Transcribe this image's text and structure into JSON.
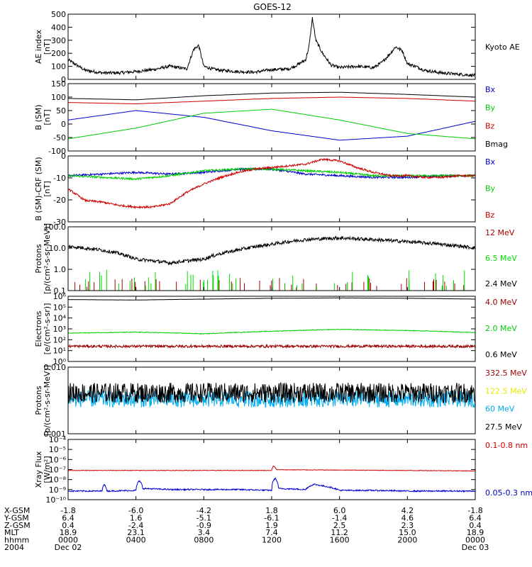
{
  "title": "GOES-12",
  "chart_data": [
    {
      "type": "line",
      "ylabel_lines": [
        "AE index",
        "[nT]"
      ],
      "ylim": [
        0,
        500
      ],
      "yticks": [
        "500",
        "400",
        "300",
        "200",
        "100",
        "0"
      ],
      "yscale": "linear",
      "series": [
        {
          "name": "Kyoto AE",
          "color": "#000000",
          "noise": 12,
          "x": [
            0,
            0.5,
            1,
            1.5,
            2,
            3,
            4,
            5,
            6,
            7,
            7.4,
            7.7,
            8,
            8.5,
            9,
            10,
            11,
            12,
            13,
            13.5,
            14,
            14.2,
            14.4,
            14.6,
            14.8,
            15,
            15.5,
            16,
            17,
            18,
            18.5,
            19,
            19.3,
            19.7,
            20,
            20.5,
            21,
            22,
            23,
            24
          ],
          "y": [
            150,
            110,
            70,
            60,
            50,
            50,
            60,
            75,
            100,
            80,
            230,
            260,
            100,
            80,
            70,
            60,
            55,
            75,
            80,
            110,
            150,
            250,
            470,
            300,
            250,
            200,
            110,
            90,
            100,
            90,
            130,
            200,
            250,
            220,
            120,
            100,
            70,
            50,
            40,
            30
          ]
        }
      ],
      "legend": [
        "Kyoto AE"
      ]
    },
    {
      "type": "line",
      "ylabel_lines": [
        "B (SM)",
        "[nT]"
      ],
      "ylim": [
        -100,
        150
      ],
      "yticks": [
        "150",
        "100",
        "50",
        "0",
        "-50",
        "-100"
      ],
      "yscale": "linear",
      "series": [
        {
          "name": "Bx",
          "color": "#0000cc",
          "noise": 0,
          "x": [
            0,
            4,
            8,
            12,
            16,
            20,
            24
          ],
          "y": [
            15,
            50,
            25,
            -25,
            -60,
            -45,
            10
          ]
        },
        {
          "name": "By",
          "color": "#00cc00",
          "noise": 0,
          "x": [
            0,
            4,
            8,
            12,
            16,
            20,
            24
          ],
          "y": [
            -55,
            -15,
            40,
            55,
            15,
            -35,
            -55
          ]
        },
        {
          "name": "Bz",
          "color": "#cc0000",
          "noise": 0,
          "x": [
            0,
            4,
            8,
            12,
            16,
            20,
            24
          ],
          "y": [
            80,
            75,
            85,
            95,
            100,
            95,
            85
          ]
        },
        {
          "name": "Bmag",
          "color": "#000000",
          "noise": 0,
          "x": [
            0,
            4,
            8,
            12,
            16,
            20,
            24
          ],
          "y": [
            95,
            90,
            105,
            115,
            118,
            110,
            100
          ]
        }
      ],
      "legend": [
        "Bx",
        "By",
        "Bz",
        "Bmag"
      ]
    },
    {
      "type": "line",
      "ylabel_lines": [
        "B (SM)-CRF (SM)",
        "[nT]"
      ],
      "ylim": [
        -30,
        10
      ],
      "yticks": [
        "0",
        "-10",
        "-20",
        "-30"
      ],
      "yscale": "linear",
      "series": [
        {
          "name": "Bx",
          "color": "#0000cc",
          "noise": 0.6,
          "x": [
            0,
            2,
            4,
            6,
            8,
            10,
            12,
            14,
            16,
            18,
            20,
            22,
            24
          ],
          "y": [
            -2,
            -1,
            0,
            -1,
            0,
            2,
            2,
            -1,
            -2,
            -3,
            -3,
            -2,
            -2
          ]
        },
        {
          "name": "By",
          "color": "#00cc00",
          "noise": 0.6,
          "x": [
            0,
            2,
            4,
            6,
            8,
            10,
            12,
            14,
            16,
            18,
            20,
            22,
            24
          ],
          "y": [
            -2,
            -3,
            -4,
            -2,
            1,
            2,
            2,
            1,
            0,
            -2,
            -2,
            -2,
            -2
          ]
        },
        {
          "name": "Bz",
          "color": "#cc0000",
          "noise": 0.6,
          "x": [
            0,
            1,
            2,
            3,
            4,
            5,
            6,
            7,
            8,
            9,
            10,
            11,
            12,
            13,
            14,
            15,
            16,
            17,
            18,
            19,
            20,
            21,
            22,
            23,
            24
          ],
          "y": [
            -10,
            -17,
            -18,
            -20,
            -21,
            -21,
            -19,
            -12,
            -7,
            -3,
            0,
            2,
            3,
            4,
            5,
            8,
            7,
            3,
            0,
            -2,
            -2,
            -3,
            -3,
            -2,
            -2
          ]
        }
      ],
      "legend": [
        "Bx",
        "By",
        "Bz"
      ]
    },
    {
      "type": "line",
      "ylabel_lines": [
        "Protons",
        "[p/(cm²-s-sr-MeV)]"
      ],
      "ylim": [
        0.1,
        100
      ],
      "yticks": [
        "100.0",
        "10.0",
        "1.0",
        "0.1"
      ],
      "yscale": "log",
      "series": [
        {
          "name": "12 MeV",
          "color": "#aa0000",
          "noise": 0,
          "style": "spikes",
          "x": [
            0,
            24
          ],
          "y": [
            0.1,
            0.1
          ]
        },
        {
          "name": "6.5 MeV",
          "color": "#00dd00",
          "noise": 0,
          "style": "spikes",
          "x": [
            0,
            24
          ],
          "y": [
            0.1,
            0.1
          ]
        },
        {
          "name": "2.4 MeV",
          "color": "#000000",
          "noise": 0.08,
          "x": [
            0,
            2,
            4,
            6,
            8,
            10,
            12,
            14,
            16,
            18,
            20,
            22,
            24
          ],
          "y": [
            12,
            8,
            3,
            2,
            3,
            8,
            15,
            25,
            30,
            25,
            20,
            15,
            10
          ]
        }
      ],
      "legend": [
        "12 MeV",
        "6.5 MeV",
        "2.4 MeV"
      ]
    },
    {
      "type": "line",
      "ylabel_lines": [
        "Electrons",
        "[e/(cm²-s-sr)]"
      ],
      "ylim": [
        1,
        1000000
      ],
      "yticks": [
        "10⁶",
        "10⁵",
        "10⁴",
        "10³",
        "10²",
        "10¹",
        "10⁰"
      ],
      "yscale": "log",
      "series": [
        {
          "name": "4.0 MeV",
          "color": "#990000",
          "noise": 0.12,
          "x": [
            0,
            24
          ],
          "y": [
            25,
            25
          ]
        },
        {
          "name": "2.0 MeV",
          "color": "#00cc00",
          "noise": 0.03,
          "x": [
            0,
            4,
            8,
            12,
            16,
            20,
            24
          ],
          "y": [
            400,
            500,
            350,
            600,
            900,
            700,
            450
          ]
        },
        {
          "name": "0.6 MeV",
          "color": "#000000",
          "noise": 0.01,
          "x": [
            0,
            4,
            8,
            12,
            16,
            20,
            24
          ],
          "y": [
            500000,
            450000,
            550000,
            650000,
            700000,
            650000,
            550000
          ]
        }
      ],
      "legend": [
        "4.0 MeV",
        "2.0 MeV",
        "0.6 MeV"
      ]
    },
    {
      "type": "line",
      "ylabel_lines": [
        "Protons",
        "[p/(cm²-s-sr-MeV)]"
      ],
      "ylim": [
        0.001,
        0.1
      ],
      "yticks": [
        "0.010",
        "0.001"
      ],
      "yscale": "log",
      "series": [
        {
          "name": "332.5 MeV",
          "color": "#990000",
          "noise": 0,
          "x": [
            0,
            24
          ],
          "y": [
            0.001,
            0.001
          ]
        },
        {
          "name": "122.5 MeV",
          "color": "#e8e800",
          "noise": 0,
          "x": [
            0,
            24
          ],
          "y": [
            0.001,
            0.001
          ]
        },
        {
          "name": "60 MeV",
          "color": "#00aaee",
          "noise": 0.25,
          "x": [
            0,
            24
          ],
          "y": [
            0.011,
            0.011
          ]
        },
        {
          "name": "27.5 MeV",
          "color": "#000000",
          "noise": 0.3,
          "x": [
            0,
            24
          ],
          "y": [
            0.017,
            0.017
          ]
        }
      ],
      "legend": [
        "332.5 MeV",
        "122.5 MeV",
        "60 MeV",
        "27.5 MeV"
      ]
    },
    {
      "type": "line",
      "ylabel_lines": [
        "Xray Flux",
        "[W/m²]"
      ],
      "ylim": [
        1e-10,
        0.001
      ],
      "yticks": [
        "10⁻⁴",
        "10⁻⁵",
        "10⁻⁶",
        "10⁻⁷",
        "10⁻⁸",
        "10⁻⁹",
        "10⁻¹⁰"
      ],
      "yscale": "log",
      "series": [
        {
          "name": "0.1-0.8 nm",
          "color": "#cc0000",
          "noise": 0.03,
          "x": [
            0,
            12,
            12.1,
            12.3,
            24
          ],
          "y": [
            2.5e-07,
            2.5e-07,
            8e-07,
            3e-07,
            2.2e-07
          ]
        },
        {
          "name": "0.05-0.3 nm",
          "color": "#0000cc",
          "noise": 0.08,
          "x": [
            0,
            2,
            2.1,
            2.3,
            4,
            4.2,
            4.4,
            6,
            10,
            12,
            12.2,
            12.4,
            14,
            14.5,
            15,
            16,
            18,
            20,
            24
          ],
          "y": [
            1e-09,
            1e-09,
            6e-09,
            1e-09,
            1.2e-09,
            1.5e-08,
            2e-09,
            1.5e-09,
            1.5e-09,
            1.2e-09,
            3e-08,
            2e-09,
            1.5e-09,
            6e-09,
            4e-09,
            1.2e-09,
            1.2e-09,
            1e-09,
            1e-09
          ]
        }
      ],
      "legend": [
        "0.1-0.8 nm",
        "0.05-0.3 nm"
      ]
    }
  ],
  "xaxis": {
    "xlim": [
      0,
      24
    ],
    "tick_hours": [
      0,
      4,
      8,
      12,
      16,
      20,
      24
    ],
    "rows": [
      {
        "label": "X-GSM",
        "values": [
          "-1.8",
          "-6.0",
          "-4.2",
          "1.8",
          "6.0",
          "4.2",
          "-1.8"
        ]
      },
      {
        "label": "Y-GSM",
        "values": [
          "6.4",
          "1.6",
          "-5.1",
          "-6.1",
          "-1.4",
          "4.6",
          "6.4"
        ]
      },
      {
        "label": "Z-GSM",
        "values": [
          "0.4",
          "-2.4",
          "-0.9",
          "1.9",
          "2.5",
          "2.3",
          "0.4"
        ]
      },
      {
        "label": "MLT",
        "values": [
          "18.9",
          "23.1",
          "3.4",
          "7.4",
          "11.2",
          "15.0",
          "18.9"
        ]
      },
      {
        "label": "hhmm",
        "values": [
          "0000",
          "0400",
          "0800",
          "1200",
          "1600",
          "2000",
          "0000"
        ]
      },
      {
        "label": "2004",
        "values": [
          "Dec 02",
          "",
          "",
          "",
          "",
          "",
          "Dec 03"
        ]
      }
    ]
  }
}
